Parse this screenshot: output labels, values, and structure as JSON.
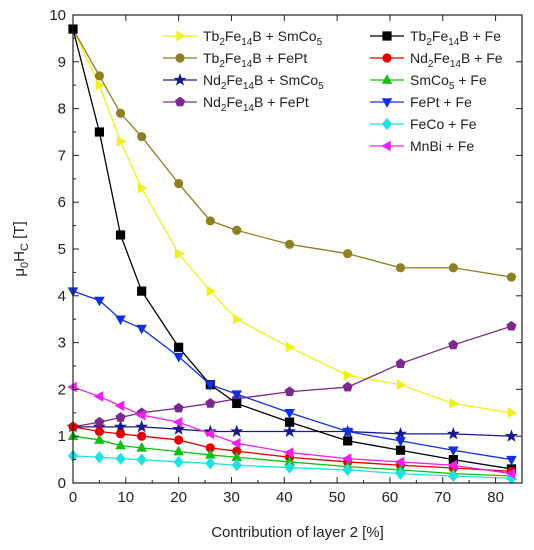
{
  "chart_data": {
    "type": "line",
    "xlabel": "Contribution of layer 2 [%]",
    "ylabel": {
      "main": "μ",
      "sub1": "0",
      "mid": "H",
      "sub2": "C",
      "unit": " [T]"
    },
    "xlim": [
      0,
      85
    ],
    "ylim": [
      0,
      10
    ],
    "xticks": [
      0,
      10,
      20,
      30,
      40,
      50,
      60,
      70,
      80
    ],
    "yticks": [
      0,
      1,
      2,
      3,
      4,
      5,
      6,
      7,
      8,
      9,
      10
    ],
    "grid": false,
    "legend_position": "top-right",
    "x": [
      0,
      5,
      9,
      13,
      20,
      26,
      31,
      41,
      52,
      62,
      72,
      83
    ],
    "series": [
      {
        "id": "tb-smco5",
        "name_parts": [
          [
            "Tb",
            ""
          ],
          [
            "2",
            "sub"
          ],
          [
            "Fe",
            ""
          ],
          [
            "14",
            "sub"
          ],
          [
            "B + SmCo",
            ""
          ],
          [
            "5",
            "sub"
          ]
        ],
        "color": "#f0f020",
        "marker": "triangle-right",
        "values": [
          9.7,
          8.5,
          7.3,
          6.3,
          4.9,
          4.1,
          3.5,
          2.9,
          2.3,
          2.1,
          1.7,
          1.5
        ]
      },
      {
        "id": "tb-fept",
        "name_parts": [
          [
            "Tb",
            ""
          ],
          [
            "2",
            "sub"
          ],
          [
            "Fe",
            ""
          ],
          [
            "14",
            "sub"
          ],
          [
            "B + FePt",
            ""
          ]
        ],
        "color": "#8c8020",
        "marker": "circle",
        "values": [
          9.7,
          8.7,
          7.9,
          7.4,
          6.4,
          5.6,
          5.4,
          5.1,
          4.9,
          4.6,
          4.6,
          4.4
        ]
      },
      {
        "id": "nd-smco5",
        "name_parts": [
          [
            "Nd",
            ""
          ],
          [
            "2",
            "sub"
          ],
          [
            "Fe",
            ""
          ],
          [
            "14",
            "sub"
          ],
          [
            "B + SmCo",
            ""
          ],
          [
            "5",
            "sub"
          ]
        ],
        "color": "#1a1a8c",
        "marker": "star",
        "values": [
          1.2,
          1.2,
          1.2,
          1.2,
          1.15,
          1.1,
          1.1,
          1.1,
          1.1,
          1.05,
          1.05,
          1.0
        ]
      },
      {
        "id": "nd-fept",
        "name_parts": [
          [
            "Nd",
            ""
          ],
          [
            "2",
            "sub"
          ],
          [
            "Fe",
            ""
          ],
          [
            "14",
            "sub"
          ],
          [
            "B + FePt",
            ""
          ]
        ],
        "color": "#7a2a8c",
        "marker": "pentagon",
        "values": [
          1.2,
          1.3,
          1.4,
          1.5,
          1.6,
          1.7,
          1.8,
          1.95,
          2.05,
          2.55,
          2.95,
          3.35
        ]
      },
      {
        "id": "tb-fe",
        "name_parts": [
          [
            "Tb",
            ""
          ],
          [
            "2",
            "sub"
          ],
          [
            "Fe",
            ""
          ],
          [
            "14",
            "sub"
          ],
          [
            "B + Fe",
            ""
          ]
        ],
        "color": "#000000",
        "marker": "square",
        "values": [
          9.7,
          7.5,
          5.3,
          4.1,
          2.9,
          2.1,
          1.7,
          1.3,
          0.9,
          0.7,
          0.5,
          0.3
        ]
      },
      {
        "id": "nd-fe",
        "name_parts": [
          [
            "Nd",
            ""
          ],
          [
            "2",
            "sub"
          ],
          [
            "Fe",
            ""
          ],
          [
            "14",
            "sub"
          ],
          [
            "B + Fe",
            ""
          ]
        ],
        "color": "#e00000",
        "marker": "circle",
        "values": [
          1.2,
          1.1,
          1.05,
          1.0,
          0.92,
          0.75,
          0.68,
          0.55,
          0.45,
          0.38,
          0.32,
          0.25
        ]
      },
      {
        "id": "smco5-fe",
        "name_parts": [
          [
            "SmCo",
            ""
          ],
          [
            "5",
            "sub"
          ],
          [
            " + Fe",
            ""
          ]
        ],
        "color": "#10c010",
        "marker": "triangle-up",
        "values": [
          1.0,
          0.92,
          0.8,
          0.75,
          0.67,
          0.6,
          0.55,
          0.45,
          0.35,
          0.28,
          0.2,
          0.15
        ]
      },
      {
        "id": "fept-fe",
        "name_parts": [
          [
            "FePt + Fe",
            ""
          ]
        ],
        "color": "#1030e0",
        "marker": "triangle-down",
        "values": [
          4.1,
          3.9,
          3.5,
          3.3,
          2.7,
          2.1,
          1.9,
          1.5,
          1.1,
          0.9,
          0.7,
          0.5
        ]
      },
      {
        "id": "feco-fe",
        "name_parts": [
          [
            "FeCo + Fe",
            ""
          ]
        ],
        "color": "#20e0e0",
        "marker": "diamond",
        "values": [
          0.58,
          0.55,
          0.52,
          0.5,
          0.45,
          0.42,
          0.38,
          0.33,
          0.28,
          0.2,
          0.15,
          0.1
        ]
      },
      {
        "id": "mnbi-fe",
        "name_parts": [
          [
            "MnBi + Fe",
            ""
          ]
        ],
        "color": "#f020f0",
        "marker": "triangle-left",
        "values": [
          2.05,
          1.85,
          1.65,
          1.45,
          1.3,
          1.05,
          0.85,
          0.65,
          0.52,
          0.45,
          0.38,
          0.2
        ]
      }
    ],
    "legend": {
      "columns": [
        [
          "tb-smco5",
          "tb-fept",
          "nd-smco5",
          "nd-fept"
        ],
        [
          "tb-fe",
          "nd-fe",
          "smco5-fe",
          "fept-fe",
          "feco-fe",
          "mnbi-fe"
        ]
      ]
    }
  }
}
